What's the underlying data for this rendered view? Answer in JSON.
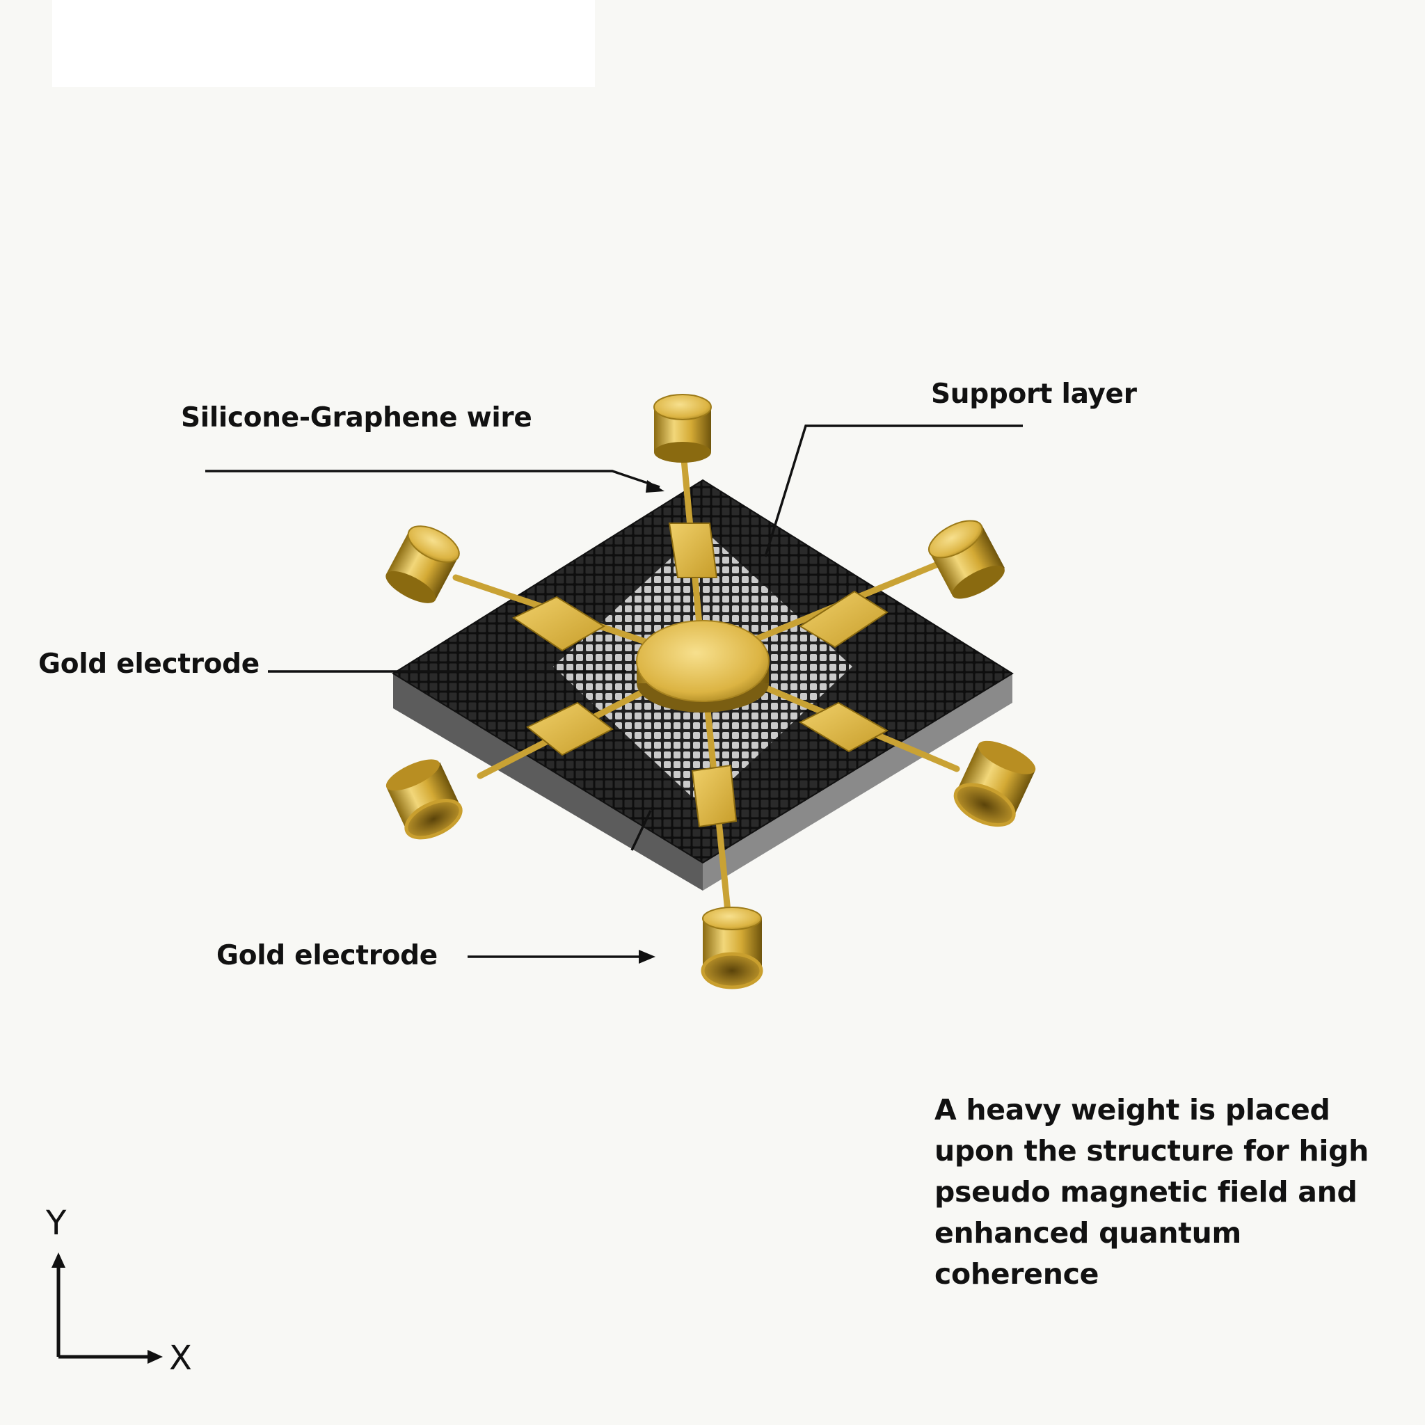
{
  "labels": {
    "wire": "Silicone-Graphene wire",
    "support": "Support layer",
    "electrode_left": "Gold electrode",
    "electrode_bottom": "Gold electrode"
  },
  "note": "A heavy weight is placed upon the structure for high pseudo magnetic field and enhanced quantum coherence",
  "axes": {
    "y": "Y",
    "x": "X"
  },
  "colors": {
    "background": "#f8f8f5",
    "gold": "#d4aa35",
    "gold_light": "#f2d77a",
    "gold_dark": "#8a6a10",
    "substrate_top": "#1a1a1a",
    "substrate_side": "#6a6a6a",
    "mesh": "#bdbdbd",
    "text": "#111111"
  }
}
